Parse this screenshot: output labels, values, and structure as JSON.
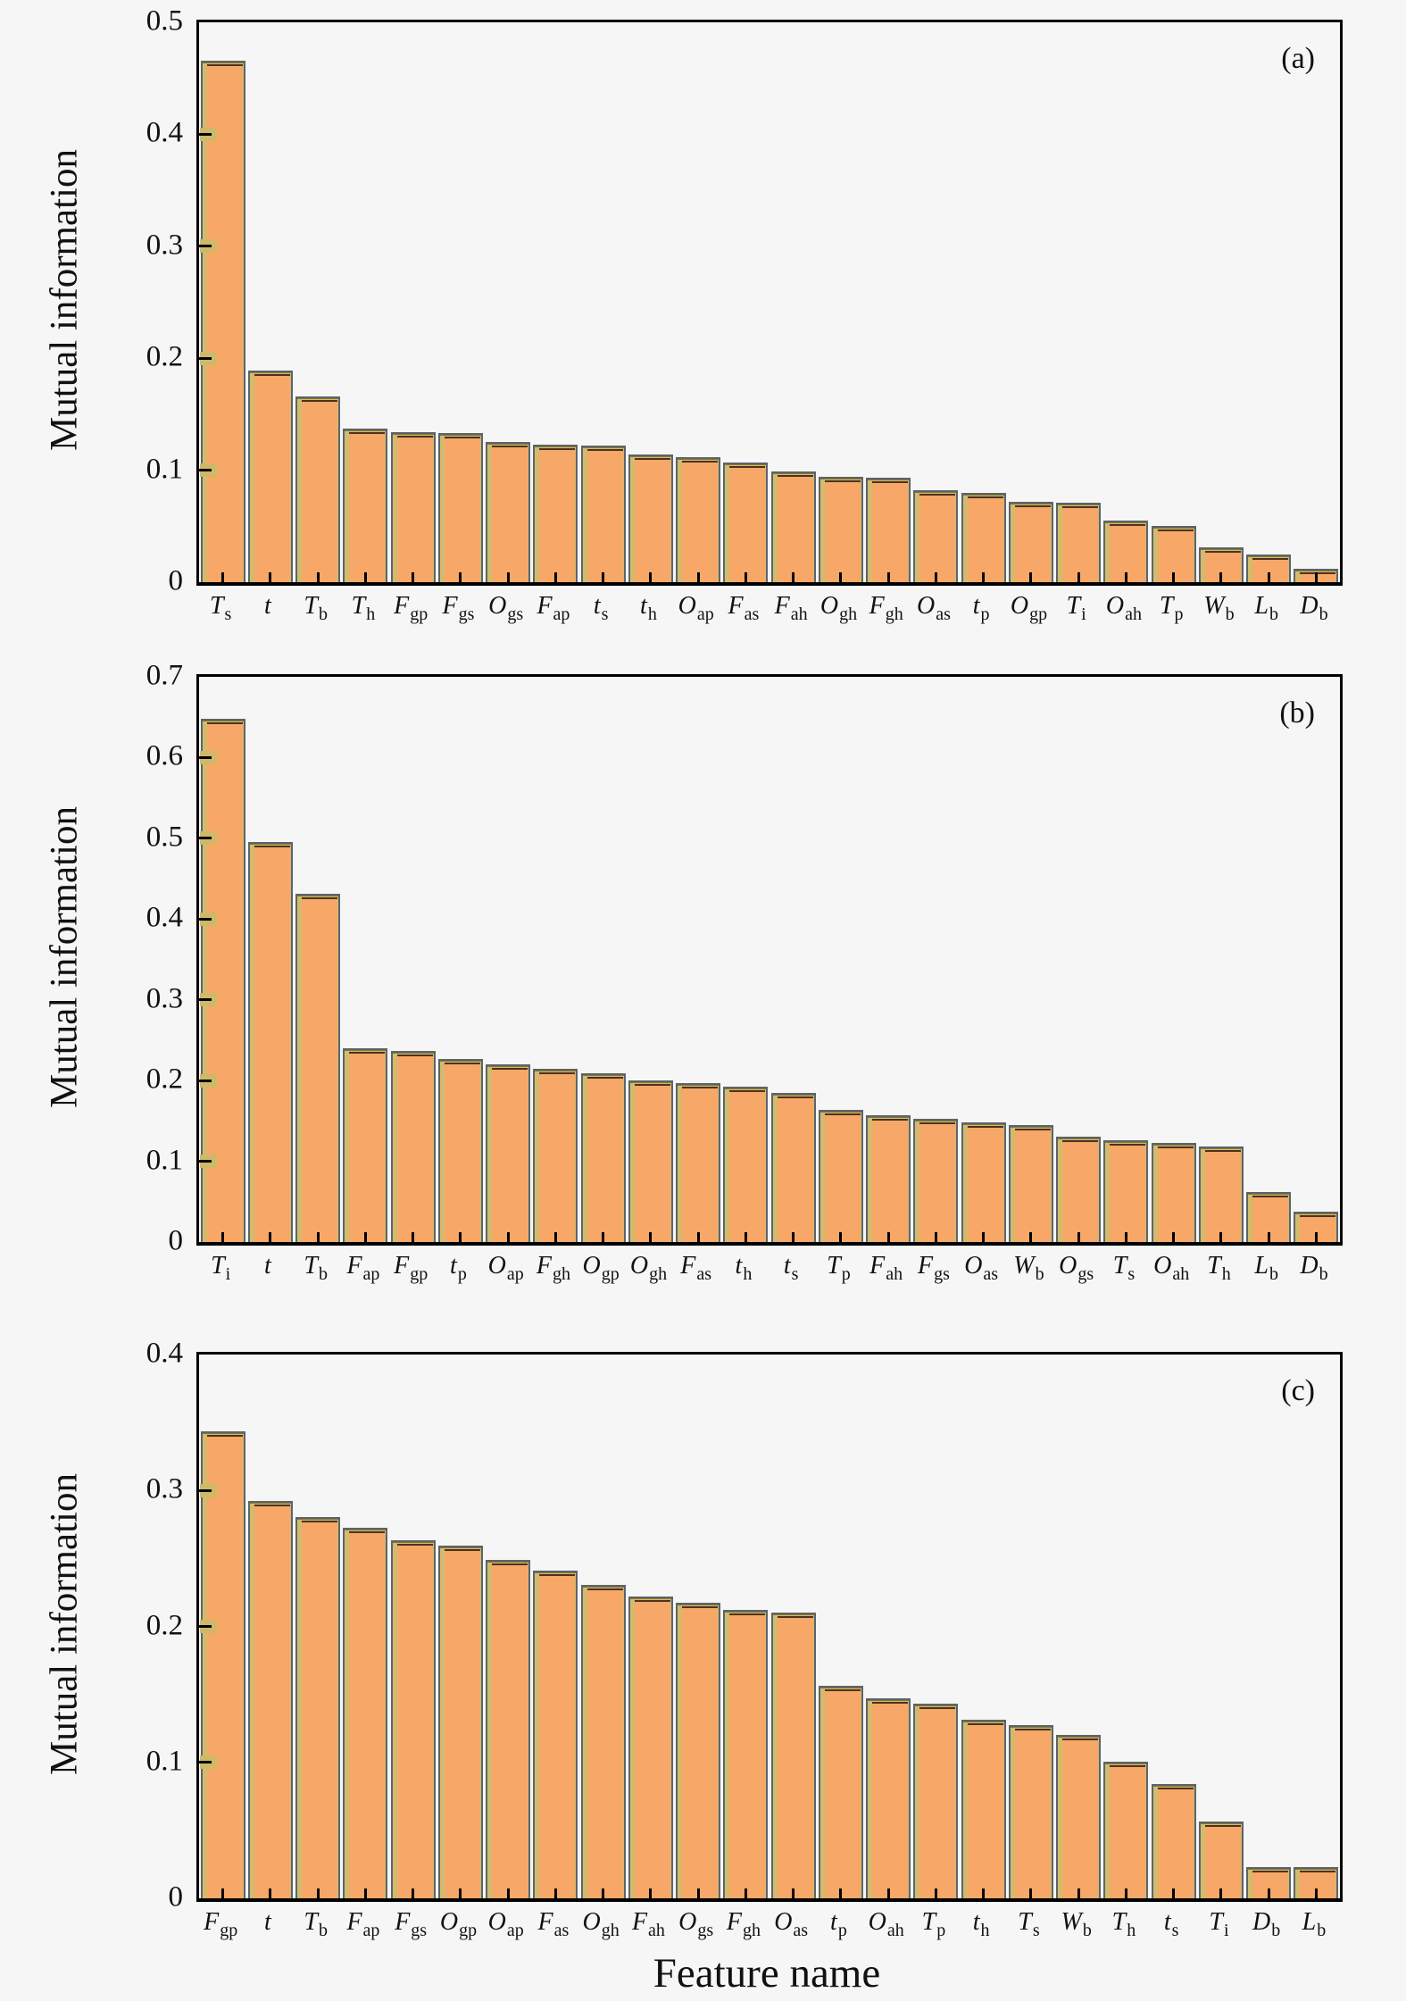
{
  "figure": {
    "xlabel": "Feature name",
    "ylabel": "Mutual information",
    "colors": {
      "bar_front": "#f7a768",
      "bar_back_khaki": "#d2bb6c",
      "bar_outline": "#5c646b",
      "bar_back_fill": "#edf3f7",
      "bar_top_edge": "#4a3320",
      "axis": "#000000",
      "background": "#f6f6f6"
    }
  },
  "chart_data": [
    {
      "type": "bar",
      "panel_letter": "(a)",
      "title": "",
      "xlabel": "",
      "ylabel": "Mutual information",
      "ylim": [
        0,
        0.5
      ],
      "yticks": [
        "0.5",
        "0.4",
        "0.3",
        "0.2",
        "0.1",
        "0"
      ],
      "grid": false,
      "legend": "none",
      "categories": [
        "T_s",
        "t",
        "T_b",
        "T_h",
        "F_gp",
        "F_gs",
        "O_gs",
        "F_ap",
        "t_s",
        "t_h",
        "O_ap",
        "F_as",
        "F_ah",
        "O_gh",
        "F_gh",
        "O_as",
        "t_p",
        "O_gp",
        "T_i",
        "O_ah",
        "T_p",
        "W_b",
        "L_b",
        "D_b"
      ],
      "values": [
        0.462,
        0.185,
        0.162,
        0.133,
        0.13,
        0.129,
        0.121,
        0.119,
        0.118,
        0.11,
        0.108,
        0.103,
        0.095,
        0.09,
        0.089,
        0.078,
        0.076,
        0.068,
        0.067,
        0.051,
        0.046,
        0.027,
        0.021,
        0.008
      ]
    },
    {
      "type": "bar",
      "panel_letter": "(b)",
      "title": "",
      "xlabel": "",
      "ylabel": "Mutual information",
      "ylim": [
        0,
        0.7
      ],
      "yticks": [
        "0.7",
        "0.6",
        "0.5",
        "0.4",
        "0.3",
        "0.2",
        "0.1",
        "0"
      ],
      "grid": false,
      "legend": "none",
      "categories": [
        "T_i",
        "t",
        "T_b",
        "F_ap",
        "F_gp",
        "t_p",
        "O_ap",
        "F_gh",
        "O_gp",
        "O_gh",
        "F_as",
        "t_h",
        "t_s",
        "T_p",
        "F_ah",
        "F_gs",
        "O_as",
        "W_b",
        "O_gs",
        "T_s",
        "O_ah",
        "T_h",
        "L_b",
        "D_b"
      ],
      "values": [
        0.643,
        0.49,
        0.426,
        0.234,
        0.231,
        0.221,
        0.215,
        0.209,
        0.204,
        0.195,
        0.191,
        0.187,
        0.179,
        0.158,
        0.152,
        0.147,
        0.143,
        0.139,
        0.125,
        0.121,
        0.117,
        0.113,
        0.057,
        0.032
      ]
    },
    {
      "type": "bar",
      "panel_letter": "(c)",
      "title": "",
      "xlabel": "Feature name",
      "ylabel": "Mutual information",
      "ylim": [
        0,
        0.4
      ],
      "yticks": [
        "0.4",
        "0.3",
        "0.2",
        "0.1",
        "0"
      ],
      "grid": false,
      "legend": "none",
      "categories": [
        "F_gp",
        "t",
        "T_b",
        "F_ap",
        "F_gs",
        "O_gp",
        "O_ap",
        "F_as",
        "O_gh",
        "F_ah",
        "O_gs",
        "F_gh",
        "O_as",
        "t_p",
        "O_ah",
        "T_p",
        "t_h",
        "T_s",
        "W_b",
        "T_h",
        "t_s",
        "T_i",
        "D_b",
        "L_b"
      ],
      "values": [
        0.34,
        0.289,
        0.277,
        0.269,
        0.26,
        0.256,
        0.246,
        0.238,
        0.227,
        0.219,
        0.214,
        0.209,
        0.207,
        0.153,
        0.144,
        0.14,
        0.128,
        0.124,
        0.117,
        0.097,
        0.081,
        0.053,
        0.02,
        0.02
      ]
    }
  ]
}
